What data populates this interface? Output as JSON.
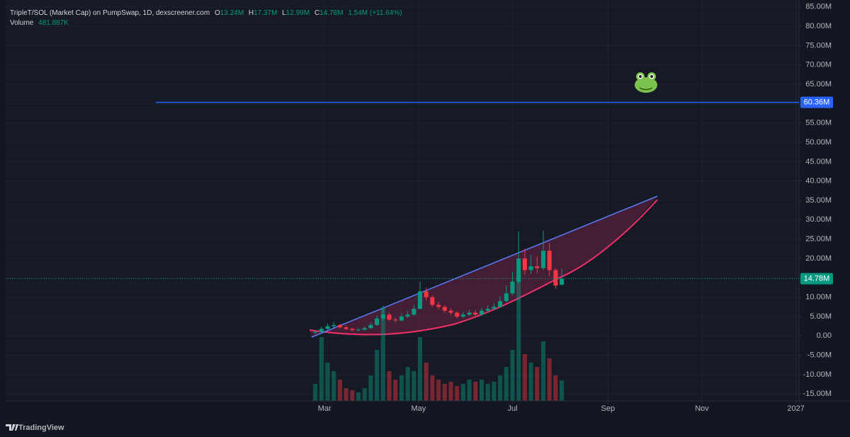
{
  "chart_data": {
    "type": "candlestick",
    "title": "TripleT/SOL (Market Cap) on PumpSwap, 1D, dexscreener.com",
    "legend": {
      "o_label": "O",
      "o": "13.24M",
      "h_label": "H",
      "h": "17.37M",
      "l_label": "L",
      "l": "12.99M",
      "c_label": "C",
      "c": "14.78M",
      "change": "1.54M (+11.64%)",
      "volume_label": "Volume",
      "volume": "481.887K"
    },
    "x": [
      53,
      57,
      61,
      65,
      69,
      73,
      77,
      81,
      85,
      89,
      93,
      97,
      101,
      105,
      109,
      113,
      117,
      121,
      125,
      129,
      133,
      137,
      141,
      145,
      149,
      153,
      157,
      161,
      165,
      169,
      173,
      177,
      181,
      185,
      189,
      193,
      197,
      201,
      205,
      209,
      213
    ],
    "open": [
      0.8,
      1.0,
      1.8,
      2.5,
      2.8,
      2.2,
      1.8,
      1.5,
      1.6,
      2.0,
      2.8,
      4.5,
      5.5,
      4.2,
      4.0,
      5.0,
      5.5,
      7.0,
      11.5,
      10.0,
      8.0,
      7.5,
      6.5,
      6.0,
      5.0,
      5.5,
      6.0,
      5.5,
      6.5,
      7.0,
      7.5,
      9.0,
      11.0,
      14.0,
      20.0,
      17.0,
      18.0,
      17.5,
      22.0,
      17.0,
      13.24
    ],
    "high": [
      1.5,
      2.4,
      3.2,
      3.6,
      3.1,
      2.5,
      2.1,
      2.0,
      2.5,
      3.5,
      5.3,
      7.8,
      6.0,
      4.8,
      5.8,
      6.4,
      8.0,
      14.0,
      12.5,
      10.5,
      8.8,
      8.0,
      7.2,
      6.4,
      6.2,
      6.8,
      6.6,
      7.2,
      7.9,
      8.4,
      10.2,
      13.0,
      16.5,
      27.0,
      22.5,
      21.0,
      20.5,
      27.2,
      24.0,
      17.5,
      17.37
    ],
    "low": [
      0.5,
      0.8,
      1.6,
      2.1,
      1.8,
      1.5,
      1.2,
      1.2,
      1.4,
      1.8,
      2.6,
      4.0,
      3.8,
      3.5,
      3.7,
      4.6,
      5.2,
      6.8,
      9.2,
      7.5,
      6.9,
      6.0,
      5.4,
      4.5,
      4.6,
      5.1,
      5.0,
      5.2,
      6.1,
      6.6,
      7.2,
      8.6,
      10.5,
      13.5,
      15.8,
      16.0,
      16.2,
      17.0,
      15.5,
      12.2,
      12.99
    ],
    "close": [
      1.0,
      1.8,
      2.5,
      2.8,
      2.2,
      1.8,
      1.5,
      1.6,
      2.0,
      2.8,
      4.5,
      5.5,
      4.2,
      4.0,
      5.0,
      5.5,
      7.0,
      11.5,
      10.0,
      8.0,
      7.5,
      6.5,
      6.0,
      5.0,
      5.5,
      6.0,
      5.5,
      6.5,
      7.0,
      7.5,
      9.0,
      11.0,
      14.0,
      20.0,
      17.0,
      18.0,
      17.5,
      22.0,
      17.0,
      13.0,
      14.78
    ],
    "volume": [
      400,
      1500,
      900,
      700,
      500,
      300,
      250,
      200,
      300,
      600,
      1200,
      2200,
      700,
      500,
      600,
      800,
      700,
      1500,
      900,
      600,
      500,
      400,
      450,
      350,
      400,
      500,
      450,
      500,
      400,
      450,
      600,
      800,
      1200,
      3000,
      1100,
      900,
      800,
      1400,
      1000,
      600,
      481.887
    ],
    "up_color": "#089981",
    "down_color": "#f23645",
    "xlim": [
      -148,
      367
    ],
    "xticks": [
      {
        "value": 59,
        "label": "Mar"
      },
      {
        "value": 120,
        "label": "May"
      },
      {
        "value": 181,
        "label": "Jul"
      },
      {
        "value": 243,
        "label": "Sep"
      },
      {
        "value": 304,
        "label": "Nov"
      },
      {
        "value": 365,
        "label": "2027"
      }
    ],
    "ylim": [
      -16.8,
      86.8
    ],
    "yticks": [
      {
        "value": 85,
        "label": "85.00M"
      },
      {
        "value": 80,
        "label": "80.00M"
      },
      {
        "value": 75,
        "label": "75.00M"
      },
      {
        "value": 70,
        "label": "70.00M"
      },
      {
        "value": 65,
        "label": "65.00M"
      },
      {
        "value": 60,
        "label": "60.00M"
      },
      {
        "value": 55,
        "label": "55.00M"
      },
      {
        "value": 50,
        "label": "50.00M"
      },
      {
        "value": 45,
        "label": "45.00M"
      },
      {
        "value": 40,
        "label": "40.00M"
      },
      {
        "value": 35,
        "label": "35.00M"
      },
      {
        "value": 30,
        "label": "30.00M"
      },
      {
        "value": 25,
        "label": "25.00M"
      },
      {
        "value": 20,
        "label": "20.00M"
      },
      {
        "value": 15,
        "label": "15.00M"
      },
      {
        "value": 10,
        "label": "10.00M"
      },
      {
        "value": 5,
        "label": "5.00M"
      },
      {
        "value": 0,
        "label": "0.00"
      },
      {
        "value": -5,
        "label": "-5.00M"
      },
      {
        "value": -10,
        "label": "-10.00M"
      },
      {
        "value": -15,
        "label": "-15.00M"
      }
    ],
    "grid": true,
    "horizontal_line": {
      "value": 60.36,
      "label": "60.36M",
      "color": "#2962ff"
    },
    "last_price": {
      "value": 14.78,
      "label": "14.78M",
      "color": "#089981"
    },
    "brand": "TradingView"
  }
}
